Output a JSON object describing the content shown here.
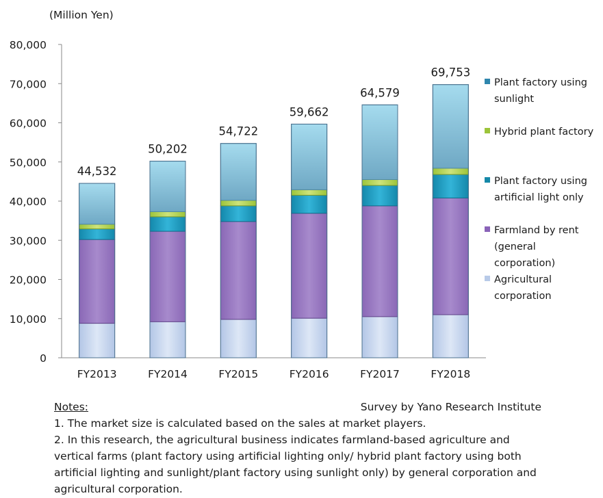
{
  "chart_data": {
    "type": "bar",
    "stacked": true,
    "unit_label": "(Million Yen)",
    "categories": [
      "FY2013",
      "FY2014",
      "FY2015",
      "FY2016",
      "FY2017",
      "FY2018"
    ],
    "totals": [
      "44,532",
      "50,202",
      "54,722",
      "59,662",
      "64,579",
      "69,753"
    ],
    "yticks": [
      "0",
      "10,000",
      "20,000",
      "30,000",
      "40,000",
      "50,000",
      "60,000",
      "70,000",
      "80,000"
    ],
    "ylim": [
      0,
      80000
    ],
    "grid": false,
    "legend_position": "right",
    "series": [
      {
        "name": "Agricultural corporation",
        "color": "#c6d5ef",
        "values": [
          8800,
          9200,
          9800,
          10100,
          10500,
          11000
        ]
      },
      {
        "name": "Farmland by rent (general corporation)",
        "color": "#9b7cc2",
        "values": [
          21400,
          23100,
          25000,
          26800,
          28300,
          29800
        ]
      },
      {
        "name": "Plant factory using artificial light only",
        "color": "#1f9ec4",
        "values": [
          2700,
          3700,
          4000,
          4600,
          5200,
          6000
        ]
      },
      {
        "name": "Hybrid plant factory",
        "color": "#b6d55a",
        "values": [
          1200,
          1300,
          1400,
          1400,
          1500,
          1600
        ]
      },
      {
        "name": "Plant factory using sunlight",
        "color": "#8fc9e0",
        "values": [
          10432,
          12902,
          14522,
          16762,
          19079,
          21353
        ]
      }
    ]
  },
  "legend": [
    {
      "text": "Plant factory using\nsunlight",
      "color": "#2f86ad"
    },
    {
      "text": "Hybrid plant factory",
      "color": "#9cc43a"
    },
    {
      "text": "Plant factory using\nartificial light only",
      "color": "#1588a8"
    },
    {
      "text": "Farmland by rent\n  (general\ncorporation)",
      "color": "#8a63b8"
    },
    {
      "text": "Agricultural\ncorporation",
      "color": "#b8cae8"
    }
  ],
  "notes": {
    "label": "Notes:",
    "source": "Survey by Yano Research Institute",
    "lines": [
      "1. The market size is calculated based on the sales at market players.",
      "2. In this research, the agricultural business indicates farmland-based agriculture and vertical farms (plant factory using artificial lighting only/ hybrid plant factory using both artificial lighting and sunlight/plant factory using sunlight only) by general corporation and agricultural corporation."
    ]
  }
}
